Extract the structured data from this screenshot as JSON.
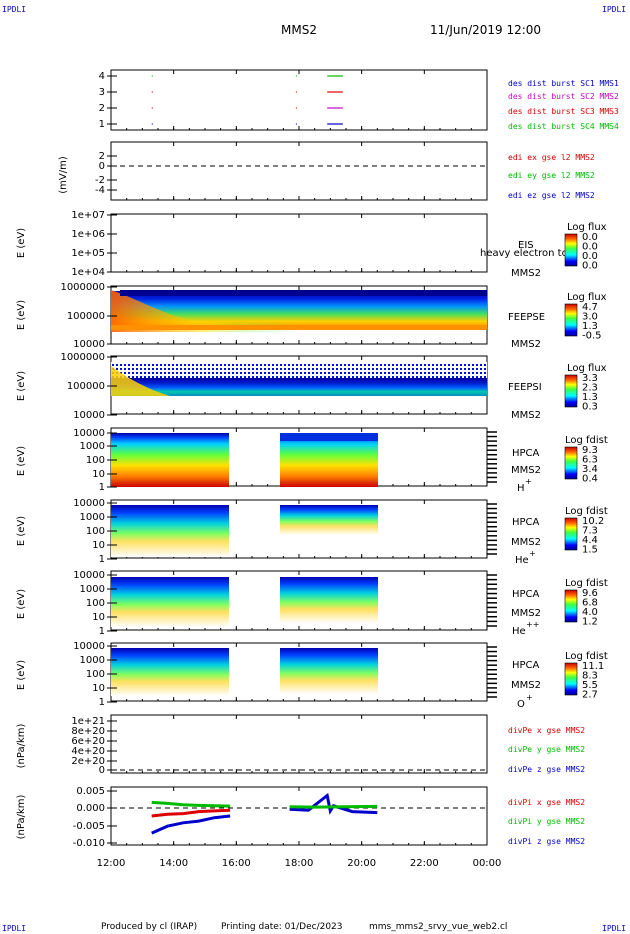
{
  "header": {
    "corner_left_top": "IPDLI",
    "corner_right_top": "IPDLI",
    "title": "MMS2",
    "datetime": "11/Jun/2019 12:00",
    "corner_left_bottom": "IPDLI",
    "corner_right_bottom": "IPDLI"
  },
  "footer": {
    "produced_by": "Produced by cl (IRAP)",
    "printing_date": "Printing date: 01/Dec/2023",
    "filename": "mms_mms2_srvy_vue_web2.cl"
  },
  "colors": {
    "mms1": "#0000cc",
    "mms2": "#cc00cc",
    "mms3": "#dd0000",
    "mms4": "#00bb00",
    "red": "#dd0000",
    "green": "#00bb00",
    "blue": "#0000cc"
  },
  "chart_data": {
    "type": "multi-panel time series / spectrogram",
    "x_axis": {
      "ticks": [
        "12:00",
        "14:00",
        "16:00",
        "18:00",
        "20:00",
        "22:00",
        "00:00"
      ],
      "range_hours": [
        12,
        24
      ]
    },
    "panels": [
      {
        "id": "burst",
        "type": "scatter",
        "yticks": [
          "4",
          "3",
          "2",
          "1"
        ],
        "legend": [
          {
            "label": "des dist burst SC1 MMS1",
            "color": "#0000cc"
          },
          {
            "label": "des dist burst SC2 MMS2",
            "color": "#cc00cc"
          },
          {
            "label": "des dist burst SC3 MMS3",
            "color": "#dd0000"
          },
          {
            "label": "des dist burst SC4 MMS4",
            "color": "#00bb00"
          }
        ],
        "segments": [
          {
            "level": 4,
            "t": [
              13.3,
              13.32
            ],
            "color": "#00bb00"
          },
          {
            "level": 3,
            "t": [
              13.3,
              13.32
            ],
            "color": "#dd0000"
          },
          {
            "level": 2,
            "t": [
              13.3,
              13.32
            ],
            "color": "#dd0000"
          },
          {
            "level": 1,
            "t": [
              13.3,
              13.32
            ],
            "color": "#0000cc"
          },
          {
            "level": 4,
            "t": [
              17.9,
              17.92
            ],
            "color": "#00bb00"
          },
          {
            "level": 3,
            "t": [
              17.9,
              17.92
            ],
            "color": "#dd0000"
          },
          {
            "level": 2,
            "t": [
              17.9,
              17.92
            ],
            "color": "#dd0000"
          },
          {
            "level": 1,
            "t": [
              17.9,
              17.92
            ],
            "color": "#0000cc"
          },
          {
            "level": 4,
            "t": [
              18.9,
              19.4
            ],
            "color": "#00bb00"
          },
          {
            "level": 3,
            "t": [
              18.9,
              19.4
            ],
            "color": "#dd0000"
          },
          {
            "level": 2,
            "t": [
              18.9,
              19.4
            ],
            "color": "#cc00cc"
          },
          {
            "level": 1,
            "t": [
              18.9,
              19.4
            ],
            "color": "#0000cc"
          }
        ]
      },
      {
        "id": "edi",
        "type": "line",
        "ylabel": "(mV/m)",
        "yticks": [
          "2",
          "0",
          "-2",
          "-4"
        ],
        "legend": [
          {
            "label": "edi ex gse l2 MMS2",
            "color": "#dd0000"
          },
          {
            "label": "edi ey gse l2 MMS2",
            "color": "#00bb00"
          },
          {
            "label": "edi ez gse l2 MMS2",
            "color": "#0000cc"
          }
        ]
      },
      {
        "id": "eis",
        "type": "heatmap",
        "ylabel": "E (eV)",
        "yticks": [
          "1e+07",
          "1e+06",
          "1e+05",
          "1e+04"
        ],
        "instrument": "EIS",
        "overlay_text": "heavy electron to",
        "spacecraft": "MMS2",
        "cbar_title": "Log flux",
        "cbar_values": [
          "0.0",
          "0.0",
          "0.0",
          "0.0"
        ]
      },
      {
        "id": "feepse",
        "type": "heatmap",
        "ylabel": "E (eV)",
        "yticks": [
          "1000000",
          "100000",
          "10000"
        ],
        "instrument": "FEEPSE",
        "spacecraft": "MMS2",
        "cbar_title": "Log flux",
        "cbar_values": [
          "4.7",
          "3.0",
          "1.3",
          "-0.5"
        ]
      },
      {
        "id": "feepsi",
        "type": "heatmap",
        "ylabel": "E (eV)",
        "yticks": [
          "1000000",
          "100000",
          "10000"
        ],
        "instrument": "FEEPSI",
        "spacecraft": "MMS2",
        "cbar_title": "Log flux",
        "cbar_values": [
          "3.3",
          "2.3",
          "1.3",
          "0.3"
        ]
      },
      {
        "id": "hpca_h",
        "type": "heatmap",
        "ylabel": "E (eV)",
        "yticks": [
          "10000",
          "1000",
          "100",
          "10",
          "1"
        ],
        "instrument": "HPCA",
        "spacecraft": "MMS2",
        "species": "H",
        "charge": "+",
        "cbar_title": "Log fdist",
        "cbar_values": [
          "9.3",
          "6.3",
          "3.4",
          "0.4"
        ]
      },
      {
        "id": "hpca_he",
        "type": "heatmap",
        "ylabel": "E (eV)",
        "yticks": [
          "10000",
          "1000",
          "100",
          "10",
          "1"
        ],
        "instrument": "HPCA",
        "spacecraft": "MMS2",
        "species": "He",
        "charge": "+",
        "cbar_title": "Log fdist",
        "cbar_values": [
          "10.2",
          "7.3",
          "4.4",
          "1.5"
        ]
      },
      {
        "id": "hpca_hepp",
        "type": "heatmap",
        "ylabel": "E (eV)",
        "yticks": [
          "10000",
          "1000",
          "100",
          "10",
          "1"
        ],
        "instrument": "HPCA",
        "spacecraft": "MMS2",
        "species": "He",
        "charge": "++",
        "cbar_title": "Log fdist",
        "cbar_values": [
          "9.6",
          "6.8",
          "4.0",
          "1.2"
        ]
      },
      {
        "id": "hpca_o",
        "type": "heatmap",
        "ylabel": "E (eV)",
        "yticks": [
          "10000",
          "1000",
          "100",
          "10",
          "1"
        ],
        "instrument": "HPCA",
        "spacecraft": "MMS2",
        "species": "O",
        "charge": "+",
        "cbar_title": "Log fdist",
        "cbar_values": [
          "11.1",
          "8.3",
          "5.5",
          "2.7"
        ]
      },
      {
        "id": "divpe",
        "type": "line",
        "ylabel": "(nPa/km)",
        "yticks": [
          "1e+21",
          "8e+20",
          "6e+20",
          "4e+20",
          "2e+20",
          "0"
        ],
        "legend": [
          {
            "label": "divPe x gse MMS2",
            "color": "#dd0000"
          },
          {
            "label": "divPe y gse MMS2",
            "color": "#00bb00"
          },
          {
            "label": "divPe z gse MMS2",
            "color": "#0000cc"
          }
        ]
      },
      {
        "id": "divpi",
        "type": "line",
        "ylabel": "(nPa/km)",
        "yticks": [
          "0.005",
          "0.000",
          "-0.005",
          "-0.010"
        ],
        "ylim": [
          -0.011,
          0.006
        ],
        "legend": [
          {
            "label": "divPi x gse MMS2",
            "color": "#dd0000"
          },
          {
            "label": "divPi y gse MMS2",
            "color": "#00bb00"
          },
          {
            "label": "divPi z gse MMS2",
            "color": "#0000cc"
          }
        ],
        "series": [
          {
            "color": "#00bb00",
            "t": [
              13.3,
              13.8,
              14.3,
              14.8,
              15.3,
              15.8
            ],
            "v": [
              0.0015,
              0.0012,
              0.0008,
              0.0006,
              0.0005,
              0.0004
            ]
          },
          {
            "color": "#dd0000",
            "t": [
              13.3,
              13.8,
              14.3,
              14.8,
              15.3,
              15.8
            ],
            "v": [
              -0.0025,
              -0.002,
              -0.0018,
              -0.0012,
              -0.001,
              -0.0008
            ]
          },
          {
            "color": "#0000cc",
            "t": [
              13.3,
              13.8,
              14.3,
              14.8,
              15.3,
              15.8
            ],
            "v": [
              -0.0075,
              -0.0055,
              -0.0045,
              -0.004,
              -0.003,
              -0.0025
            ]
          },
          {
            "color": "#0000cc",
            "t": [
              17.7,
              18.3,
              18.9,
              19.0,
              19.1,
              19.7,
              20.5
            ],
            "v": [
              -0.0005,
              -0.0008,
              0.0035,
              -0.001,
              0.0005,
              -0.0012,
              -0.0015
            ]
          },
          {
            "color": "#00bb00",
            "t": [
              17.7,
              18.5,
              19.5,
              20.5
            ],
            "v": [
              0.0002,
              0.0001,
              0.0002,
              0.0003
            ]
          }
        ]
      }
    ]
  }
}
